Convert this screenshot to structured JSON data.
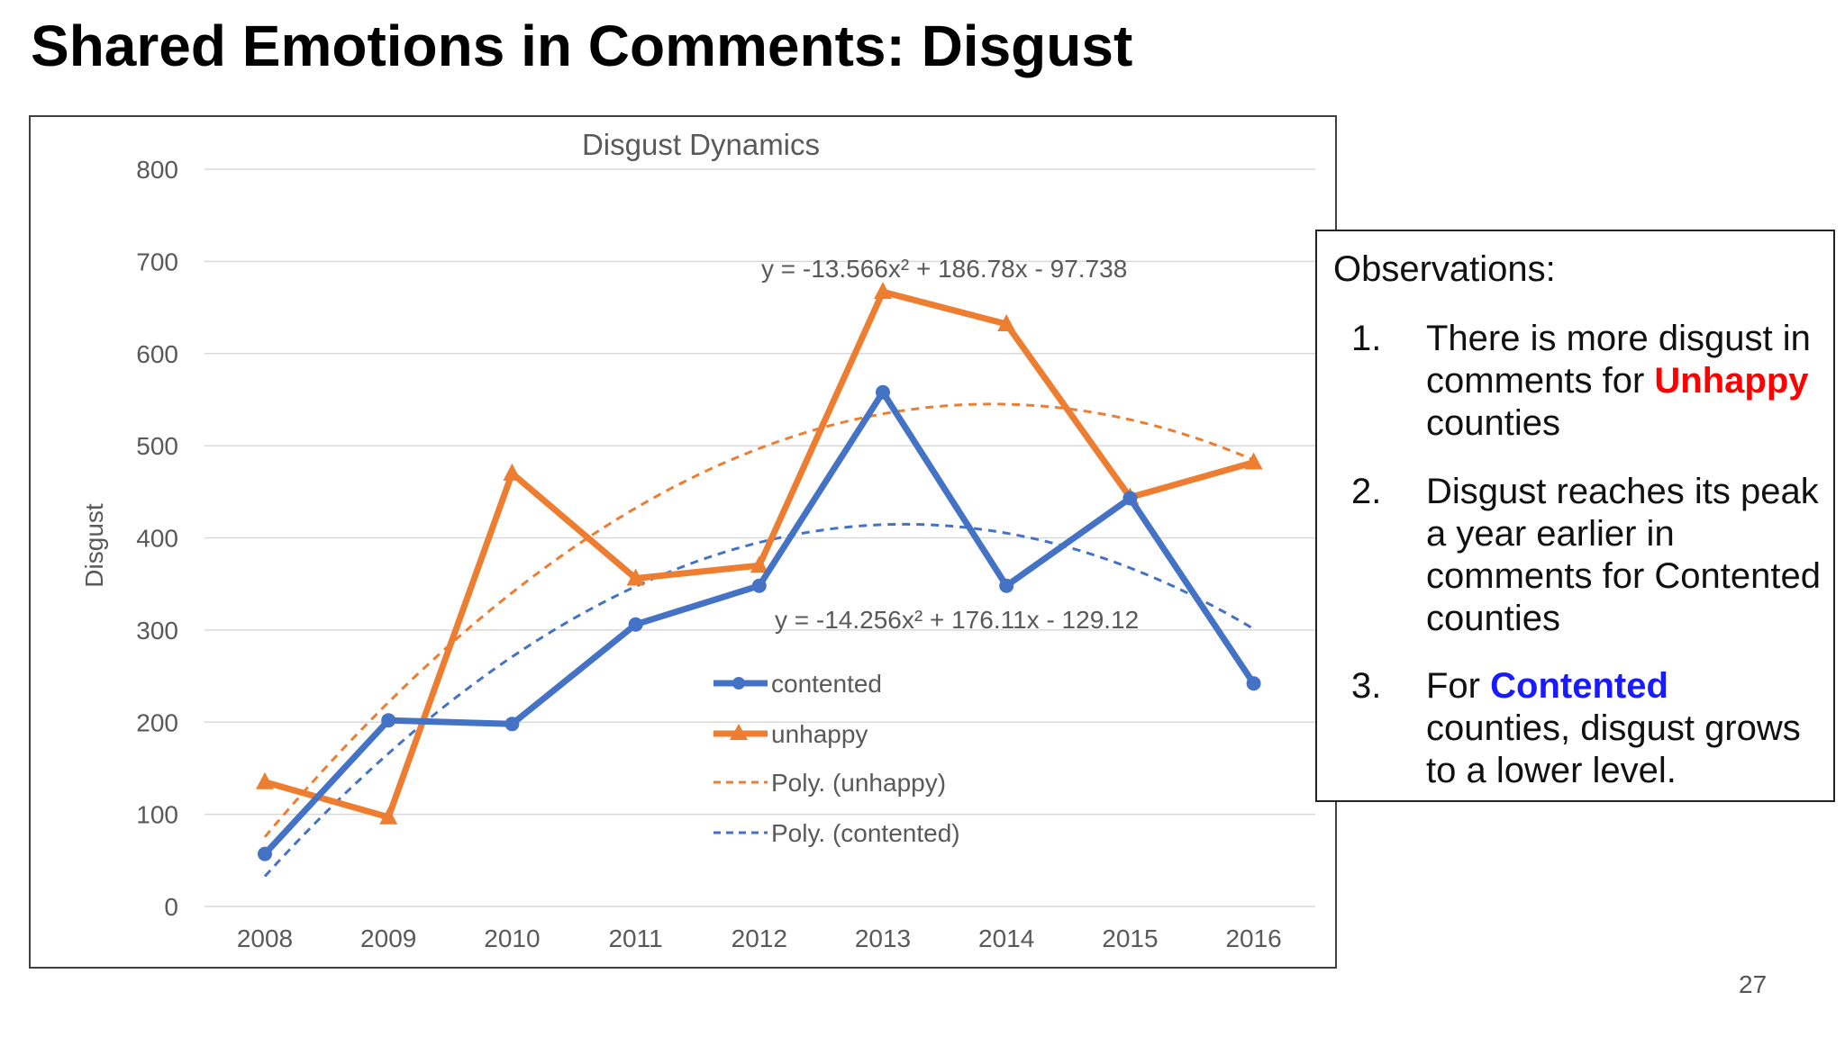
{
  "slide": {
    "title": "Shared Emotions in Comments: Disgust",
    "page_number": "27"
  },
  "observations": {
    "heading": "Observations:",
    "items": [
      {
        "num": "1.",
        "pre": "There is more disgust in comments for ",
        "highlight": "Unhappy",
        "post": " counties",
        "highlight_color": "#ff0000"
      },
      {
        "num": "2.",
        "pre": "Disgust reaches its peak a year earlier in comments for Contented counties",
        "highlight": "",
        "post": "",
        "highlight_color": ""
      },
      {
        "num": "3.",
        "pre": "For ",
        "highlight": "Contented",
        "post": " counties, disgust grows to a lower level.",
        "highlight_color": "#1a1aff"
      }
    ]
  },
  "chart_data": {
    "type": "line",
    "title": "Disgust Dynamics",
    "xlabel": "",
    "ylabel": "Disgust",
    "categories": [
      "2008",
      "2009",
      "2010",
      "2011",
      "2012",
      "2013",
      "2014",
      "2015",
      "2016"
    ],
    "ylim": [
      0,
      800
    ],
    "yticks": [
      0,
      100,
      200,
      300,
      400,
      500,
      600,
      700,
      800
    ],
    "grid": true,
    "legend_position": "center",
    "series": [
      {
        "name": "contented",
        "values": [
          57,
          202,
          198,
          306,
          348,
          558,
          348,
          443,
          242
        ],
        "color": "#4472c4",
        "marker": "circle"
      },
      {
        "name": "unhappy",
        "values": [
          135,
          97,
          470,
          356,
          370,
          667,
          632,
          444,
          482
        ],
        "color": "#ed7d31",
        "marker": "triangle"
      }
    ],
    "trendlines": [
      {
        "name": "Poly. (unhappy)",
        "equation": "y = -13.566x² + 186.78x - 97.738",
        "a": -13.566,
        "b": 186.78,
        "c": -97.738,
        "color": "#ed7d31"
      },
      {
        "name": "Poly. (contented)",
        "equation": "y = -14.256x² + 176.11x - 129.12",
        "a": -14.256,
        "b": 176.11,
        "c": -129.12,
        "color": "#4472c4"
      }
    ]
  }
}
